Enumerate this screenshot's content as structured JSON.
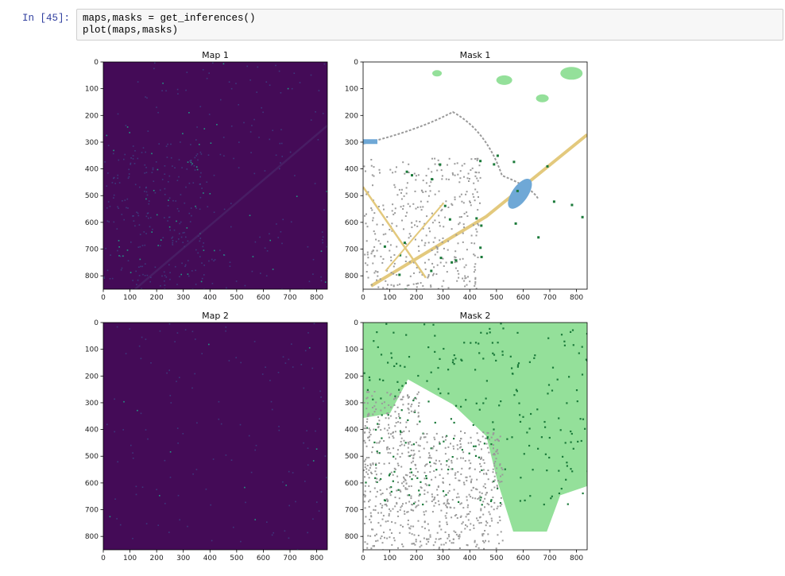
{
  "cell": {
    "prompt": "In [45]:",
    "code_lines": [
      "maps,masks = get_inferences()",
      "plot(maps,masks)"
    ]
  },
  "figure": {
    "panels": [
      {
        "title": "Map 1",
        "kind": "heatmap"
      },
      {
        "title": "Mask 1",
        "kind": "mask"
      },
      {
        "title": "Map 2",
        "kind": "heatmap"
      },
      {
        "title": "Mask 2",
        "kind": "mask"
      }
    ],
    "axis_ticks": {
      "x": [
        "0",
        "100",
        "200",
        "300",
        "400",
        "500",
        "600",
        "700",
        "800"
      ],
      "y": [
        "0",
        "100",
        "200",
        "300",
        "400",
        "500",
        "600",
        "700",
        "800"
      ]
    },
    "image_extent": [
      0,
      840,
      850,
      0
    ],
    "colors": {
      "map_background": "#440b57",
      "map_speckle": "#3b5c99",
      "map_bright": "#21a38a",
      "mask_background": "#ffffff",
      "mask_vegetation_light": "#94e09a",
      "mask_vegetation_dark": "#1b7a3a",
      "mask_road": "#e3c97d",
      "mask_building": "#9a9a9a",
      "mask_water": "#6fa8d6"
    }
  }
}
